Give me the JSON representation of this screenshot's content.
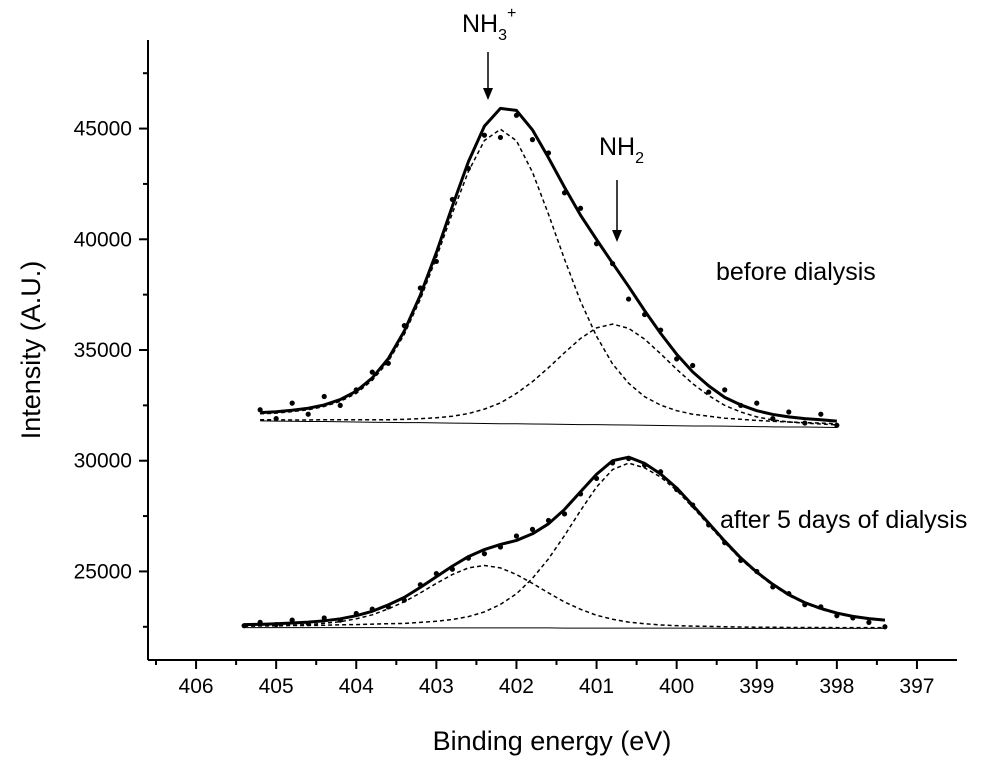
{
  "chart_data": {
    "type": "xps",
    "x_label": "Binding energy (eV)",
    "y_label": "Intensity (A.U.)",
    "xlim": [
      406.6,
      396.5
    ],
    "ylim": [
      21000,
      49000
    ],
    "xticks": [
      406,
      405,
      404,
      403,
      402,
      401,
      400,
      399,
      398,
      397
    ],
    "xminor": [
      406.5,
      405.5,
      404.5,
      403.5,
      402.5,
      401.5,
      400.5,
      399.5,
      398.5,
      397.5
    ],
    "yticks": [
      25000,
      30000,
      35000,
      40000,
      45000
    ],
    "yminor": [
      22500,
      27500,
      32500,
      37500,
      42500,
      47500
    ],
    "grid": false,
    "annotations": [
      {
        "text": "NH",
        "sub": "3",
        "sup": "+"
      },
      {
        "text": "NH",
        "sub": "2"
      },
      {
        "text": "before dialysis"
      },
      {
        "text": "after 5 days of dialysis"
      }
    ],
    "x": [
      405.4,
      405.2,
      405.0,
      404.8,
      404.6,
      404.4,
      404.2,
      404.0,
      403.8,
      403.6,
      403.4,
      403.2,
      403.0,
      402.8,
      402.6,
      402.4,
      402.2,
      402.0,
      401.8,
      401.6,
      401.4,
      401.2,
      401.0,
      400.8,
      400.6,
      400.4,
      400.2,
      400.0,
      399.8,
      399.6,
      399.4,
      399.2,
      399.0,
      398.8,
      398.6,
      398.4,
      398.2,
      398.0,
      397.8,
      397.6,
      397.4
    ],
    "series": [
      {
        "style": "points",
        "color": "#000000",
        "values": [
          null,
          32300,
          31900,
          32600,
          32100,
          32900,
          32500,
          33200,
          34000,
          34400,
          36100,
          37800,
          39000,
          41800,
          43200,
          44700,
          44600,
          45600,
          44500,
          43900,
          42100,
          41400,
          39800,
          38900,
          37300,
          36600,
          35900,
          34600,
          34300,
          33100,
          33200,
          32500,
          32600,
          31900,
          32200,
          31700,
          32100,
          31600,
          null,
          null,
          null
        ]
      },
      {
        "style": "solid",
        "color": "#000000",
        "values": [
          null,
          32170,
          32210,
          32280,
          32370,
          32520,
          32760,
          33140,
          33740,
          34610,
          35860,
          37480,
          39400,
          41500,
          43500,
          45110,
          45910,
          45820,
          44940,
          43680,
          42350,
          41090,
          39990,
          38920,
          37870,
          36780,
          35750,
          34810,
          34010,
          33380,
          32860,
          32520,
          32260,
          32090,
          31980,
          31900,
          31850,
          31790,
          null,
          null,
          null
        ]
      },
      {
        "style": "dashed",
        "color": "#000000",
        "values": [
          null,
          32120,
          32150,
          32220,
          32300,
          32450,
          32680,
          33040,
          33630,
          34480,
          35710,
          37290,
          39170,
          41180,
          43060,
          44460,
          44970,
          44450,
          43030,
          41130,
          39100,
          37200,
          35620,
          34370,
          33500,
          32890,
          32510,
          32260,
          32100,
          32010,
          31920,
          31870,
          31820,
          31780,
          31750,
          31720,
          31700,
          31670,
          null,
          null,
          null
        ]
      },
      {
        "style": "dashed",
        "color": "#000000",
        "values": [
          null,
          31850,
          31850,
          31840,
          31840,
          31850,
          31850,
          31850,
          31850,
          31850,
          31870,
          31900,
          31940,
          32010,
          32130,
          32330,
          32610,
          33040,
          33570,
          34200,
          34880,
          35520,
          36000,
          36170,
          35980,
          35490,
          34830,
          34130,
          33480,
          32940,
          32500,
          32200,
          31980,
          31840,
          31750,
          31700,
          31660,
          31620,
          null,
          null,
          null
        ]
      },
      {
        "style": "thin",
        "color": "#000000",
        "values": [
          null,
          31800,
          31790,
          31780,
          31770,
          31770,
          31760,
          31750,
          31740,
          31730,
          31720,
          31720,
          31710,
          31700,
          31690,
          31680,
          31670,
          31670,
          31660,
          31650,
          31640,
          31630,
          31630,
          31620,
          31610,
          31600,
          31590,
          31580,
          31570,
          31570,
          31560,
          31550,
          31540,
          31530,
          31520,
          31520,
          31510,
          31500,
          null,
          null,
          null
        ]
      },
      {
        "style": "points",
        "color": "#000000",
        "values": [
          22550,
          22700,
          22600,
          22800,
          22650,
          22900,
          22800,
          23100,
          23300,
          23400,
          23700,
          24400,
          24900,
          25100,
          25600,
          25800,
          26100,
          26600,
          26900,
          27300,
          27600,
          28500,
          29200,
          29900,
          30100,
          29800,
          29500,
          28700,
          28000,
          27100,
          26300,
          25500,
          25000,
          24300,
          24000,
          23500,
          23400,
          23000,
          22900,
          22700,
          22500
        ]
      },
      {
        "style": "solid",
        "color": "#000000",
        "values": [
          22600,
          22610,
          22640,
          22670,
          22710,
          22770,
          22860,
          23000,
          23200,
          23490,
          23830,
          24280,
          24760,
          25240,
          25670,
          25990,
          26220,
          26400,
          26700,
          27150,
          27800,
          28600,
          29390,
          30000,
          30160,
          29880,
          29400,
          28770,
          27990,
          27180,
          26370,
          25610,
          24970,
          24420,
          23950,
          23590,
          23330,
          23120,
          22970,
          22870,
          22800
        ]
      },
      {
        "style": "dashed",
        "color": "#000000",
        "values": [
          22530,
          22540,
          22540,
          22560,
          22560,
          22570,
          22590,
          22600,
          22620,
          22640,
          22650,
          22700,
          22750,
          22830,
          22960,
          23170,
          23510,
          23990,
          24690,
          25570,
          26620,
          27750,
          28810,
          29600,
          29890,
          29680,
          29260,
          28660,
          27900,
          27100,
          26300,
          25550,
          24920,
          24370,
          23910,
          23560,
          23290,
          23090,
          22940,
          22850,
          22770
        ]
      },
      {
        "style": "dashed",
        "color": "#000000",
        "values": [
          22530,
          22540,
          22550,
          22570,
          22600,
          22660,
          22730,
          22860,
          23040,
          23310,
          23630,
          24030,
          24460,
          24860,
          25160,
          25270,
          25160,
          24860,
          24460,
          24030,
          23620,
          23290,
          23020,
          22840,
          22710,
          22640,
          22580,
          22550,
          22530,
          22520,
          22500,
          22490,
          22480,
          22480,
          22470,
          22470,
          22470,
          22460,
          22460,
          22460,
          22460
        ]
      },
      {
        "style": "thin",
        "color": "#000000",
        "values": [
          22460,
          22460,
          22460,
          22460,
          22460,
          22460,
          22460,
          22460,
          22460,
          22460,
          22450,
          22450,
          22450,
          22450,
          22450,
          22450,
          22450,
          22450,
          22450,
          22450,
          22440,
          22440,
          22440,
          22440,
          22440,
          22440,
          22440,
          22440,
          22440,
          22440,
          22430,
          22430,
          22430,
          22430,
          22430,
          22430,
          22430,
          22430,
          22430,
          22430,
          22430
        ]
      }
    ]
  }
}
